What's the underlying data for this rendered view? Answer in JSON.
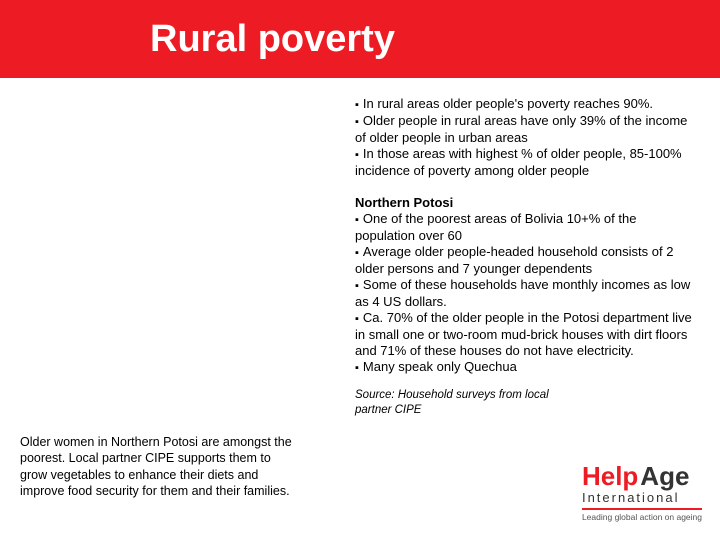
{
  "colors": {
    "brand_red": "#ed1c24",
    "title_text": "#ffffff",
    "body_text": "#000000",
    "logo_dark": "#333333",
    "background": "#ffffff"
  },
  "title": "Rural poverty",
  "caption": "Older women in Northern Potosi are amongst the poorest. Local partner CIPE supports them to grow vegetables to enhance their diets and improve food security for them and their families.",
  "block1": {
    "bullets": [
      "In rural areas older people's poverty reaches 90%.",
      "Older people in rural areas have only 39% of the income of older people in urban areas",
      "In those areas with highest % of older people, 85-100% incidence of poverty among older people"
    ]
  },
  "block2": {
    "heading": "Northern Potosi",
    "bullets": [
      "One of the poorest areas of Bolivia 10+% of the population over 60",
      "Average older people-headed household consists of 2 older persons and 7 younger dependents",
      "Some of these households have monthly incomes as low as 4 US dollars.",
      "Ca. 70% of the older people in the Potosi department live in small one or two-room mud-brick houses with dirt floors and 71% of these houses do not have electricity.",
      "Many speak only Quechua"
    ]
  },
  "source": "Source: Household surveys from local partner CIPE",
  "logo": {
    "word1": "Help",
    "word2": "Age",
    "word3": "International",
    "tagline": "Leading global action on ageing"
  },
  "typography": {
    "title_fontsize": 38,
    "body_fontsize": 13,
    "caption_fontsize": 12.5,
    "source_fontsize": 11.5
  }
}
